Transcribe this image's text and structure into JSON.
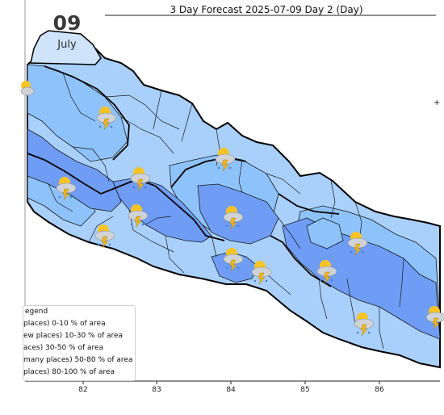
{
  "title": "3 Day Forecast 2025-07-09 Day 2 (Day)",
  "date_badge": {
    "day": "09",
    "month": "July"
  },
  "legend": {
    "title": "egend",
    "items": [
      "places)  0-10 % of area",
      "ew places) 10-30 % of area",
      "aces) 30-50  % of area",
      "many places) 50-80 % of area",
      "places) 80-100 % of area"
    ]
  },
  "x_ticks": [
    "82",
    "83",
    "84",
    "85",
    "86"
  ],
  "icons": "thunderstorm-rain-icon",
  "colors": {
    "light": "#a9d0fb",
    "medium": "#8ec2fa",
    "dark": "#6f9df5",
    "border": "#000000"
  }
}
